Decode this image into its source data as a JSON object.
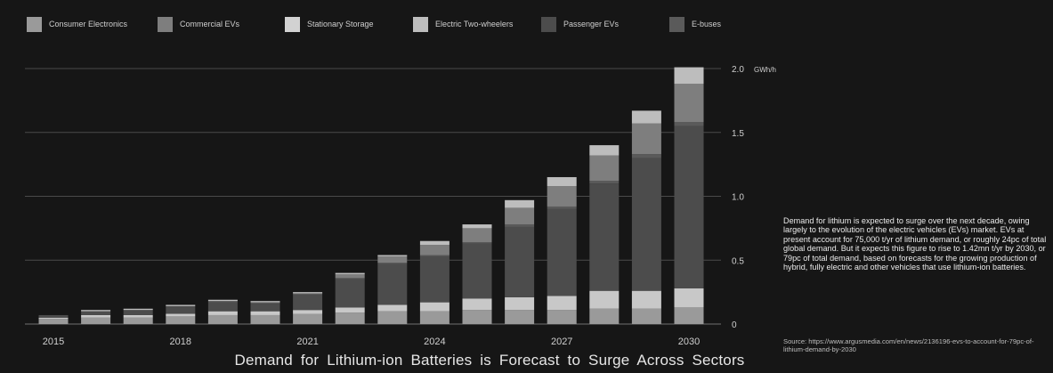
{
  "chart_data": {
    "type": "bar",
    "stacked": true,
    "title": "Demand for Lithium-ion Batteries is Forecast to Surge Across Sectors",
    "unit": "GWh/h",
    "categories": [
      "2015",
      "2016",
      "2017",
      "2018",
      "2019",
      "2020",
      "2021",
      "2022",
      "2023",
      "2024",
      "2025",
      "2026",
      "2027",
      "2028",
      "2029",
      "2030"
    ],
    "x_tick_labels": [
      "2015",
      "2018",
      "2021",
      "2024",
      "2027",
      "2030"
    ],
    "y_ticks": [
      "0",
      "0.5",
      "1.0",
      "1.5",
      "2.0"
    ],
    "ylim": [
      0,
      2.1
    ],
    "grid": true,
    "legend_position": "top",
    "series": [
      {
        "name": "Consumer Electronics",
        "color": "#9a9a9a",
        "values": [
          0.04,
          0.05,
          0.05,
          0.06,
          0.07,
          0.07,
          0.08,
          0.09,
          0.1,
          0.1,
          0.11,
          0.11,
          0.11,
          0.12,
          0.12,
          0.13
        ]
      },
      {
        "name": "Stationary Storage",
        "color": "#c8c8c8",
        "values": [
          0.01,
          0.02,
          0.02,
          0.02,
          0.03,
          0.03,
          0.03,
          0.04,
          0.05,
          0.07,
          0.09,
          0.1,
          0.11,
          0.14,
          0.14,
          0.15
        ]
      },
      {
        "name": "Passenger EVs",
        "color": "#4c4c4c",
        "values": [
          0.02,
          0.03,
          0.04,
          0.06,
          0.07,
          0.06,
          0.12,
          0.22,
          0.32,
          0.36,
          0.43,
          0.55,
          0.68,
          0.84,
          1.04,
          1.27
        ]
      },
      {
        "name": "E-buses",
        "color": "#5a5a5a",
        "values": [
          0.0,
          0.0,
          0.0,
          0.0,
          0.01,
          0.01,
          0.01,
          0.01,
          0.01,
          0.01,
          0.01,
          0.02,
          0.02,
          0.02,
          0.03,
          0.03
        ]
      },
      {
        "name": "Commercial EVs",
        "color": "#7e7e7e",
        "values": [
          0.0,
          0.0,
          0.0,
          0.0,
          0.0,
          0.0,
          0.0,
          0.03,
          0.05,
          0.08,
          0.11,
          0.13,
          0.16,
          0.2,
          0.24,
          0.3
        ]
      },
      {
        "name": "Electric Two-wheelers",
        "color": "#bdbdbd",
        "values": [
          0.0,
          0.01,
          0.01,
          0.01,
          0.01,
          0.01,
          0.01,
          0.01,
          0.01,
          0.03,
          0.03,
          0.06,
          0.07,
          0.08,
          0.1,
          0.13
        ]
      }
    ]
  },
  "legend": [
    {
      "label": "Consumer Electronics",
      "color": "#9a9a9a"
    },
    {
      "label": "Commercial EVs",
      "color": "#7e7e7e"
    },
    {
      "label": "Stationary Storage",
      "color": "#d2d2d2"
    },
    {
      "label": "Electric Two-wheelers",
      "color": "#bdbdbd"
    },
    {
      "label": "Passenger EVs",
      "color": "#4c4c4c"
    },
    {
      "label": "E-buses",
      "color": "#5a5a5a"
    }
  ],
  "note": "Demand for lithium is expected to surge over the next decade, owing largely to the evolution of the electric vehicles (EVs) market. EVs at present account for 75,000 t/yr of lithium demand, or roughly 24pc of total global demand. But it expects this figure to rise to 1.42mn t/yr by 2030, or 79pc of total demand, based on forecasts for the growing production of hybrid, fully electric and other vehicles that use lithium-ion batteries.",
  "source": "Source: https://www.argusmedia.com/en/news/2136196-evs-to-account-for-79pc-of-lithium-demand-by-2030"
}
